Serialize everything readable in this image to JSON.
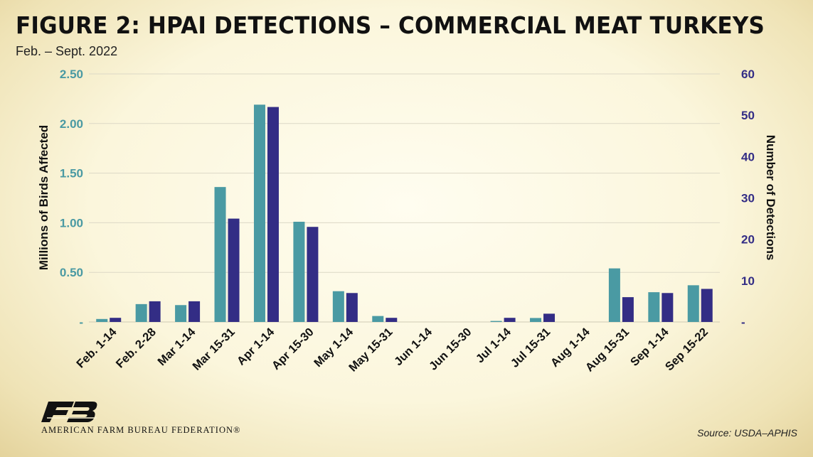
{
  "header": {
    "title": "FIGURE 2: HPAI DETECTIONS – COMMERCIAL MEAT TURKEYS",
    "subtitle": "Feb. – Sept. 2022"
  },
  "footer": {
    "organization": "AMERICAN FARM BUREAU FEDERATION®",
    "source": "Source: USDA–APHIS"
  },
  "colors": {
    "birds_series": "#4a9aa3",
    "detections_series": "#332d85",
    "left_axis_text": "#4a9aa3",
    "right_axis_text": "#332d85"
  },
  "chart_data": {
    "type": "bar",
    "categories": [
      "Feb. 1-14",
      "Feb. 2-28",
      "Mar 1-14",
      "Mar 15-31",
      "Apr 1-14",
      "Apr 15-30",
      "May 1-14",
      "May 15-31",
      "Jun 1-14",
      "Jun 15-30",
      "Jul 1-14",
      "Jul 15-31",
      "Aug 1-14",
      "Aug 15-31",
      "Sep 1-14",
      "Sep 15-22"
    ],
    "series": [
      {
        "axis": "left",
        "values": [
          0.03,
          0.18,
          0.17,
          1.36,
          2.19,
          1.01,
          0.31,
          0.06,
          0,
          0,
          0.01,
          0.04,
          0,
          0.54,
          0.3,
          0.37
        ]
      },
      {
        "axis": "right",
        "values": [
          1,
          5,
          5,
          25,
          52,
          23,
          7,
          1,
          0,
          0,
          1,
          2,
          0,
          6,
          7,
          8
        ]
      }
    ],
    "ylabel_left": "Millions of Birds Affected",
    "ylabel_right": "Number of Detections",
    "ylim_left": [
      0,
      2.5
    ],
    "ylim_right": [
      0,
      60
    ],
    "yticks_left": [
      "-",
      "0.50",
      "1.00",
      "1.50",
      "2.00",
      "2.50"
    ],
    "yticks_right": [
      "-",
      "10",
      "20",
      "30",
      "40",
      "50",
      "60"
    ],
    "grid": true,
    "legend": "none"
  }
}
